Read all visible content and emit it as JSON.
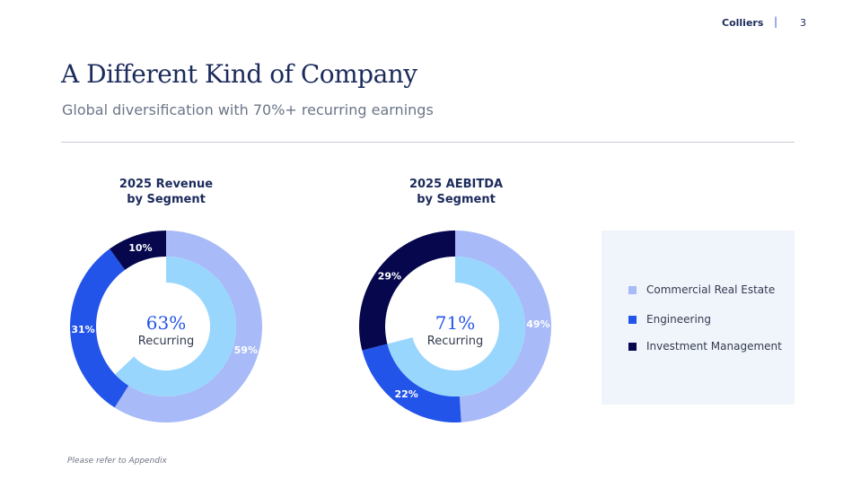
{
  "header": {
    "brand": "Colliers",
    "separator": "|",
    "page_number": "3"
  },
  "title": "A Different Kind of Company",
  "subtitle": "Global diversification with 70%+ recurring earnings",
  "colors": {
    "commercial_real_estate": "#a8baf7",
    "engineering": "#2354ea",
    "investment_management": "#06074d",
    "recurring": "#99d6fd",
    "title": "#1c2b5c",
    "highlight": "#2354ea"
  },
  "legend": [
    {
      "label": "Commercial Real Estate",
      "color": "#a8baf7"
    },
    {
      "label": "Engineering",
      "color": "#2354ea"
    },
    {
      "label": "Investment Management",
      "color": "#06074d"
    }
  ],
  "chart_data": [
    {
      "type": "pie",
      "style": "donut",
      "title_lines": [
        "2025 Revenue",
        "by Segment"
      ],
      "categories": [
        "Commercial Real Estate",
        "Engineering",
        "Investment Management"
      ],
      "values": [
        59,
        31,
        10
      ],
      "labels": [
        "59%",
        "31%",
        "10%"
      ],
      "inner_ring": {
        "name": "Recurring",
        "value": 63,
        "percent_label": "63%",
        "caption": "Recurring"
      }
    },
    {
      "type": "pie",
      "style": "donut",
      "title_lines": [
        "2025 AEBITDA",
        "by Segment"
      ],
      "categories": [
        "Commercial Real Estate",
        "Engineering",
        "Investment Management"
      ],
      "values": [
        49,
        22,
        29
      ],
      "labels": [
        "49%",
        "22%",
        "29%"
      ],
      "inner_ring": {
        "name": "Recurring",
        "value": 71,
        "percent_label": "71%",
        "caption": "Recurring"
      }
    }
  ],
  "footnote": "Please refer to Appendix"
}
